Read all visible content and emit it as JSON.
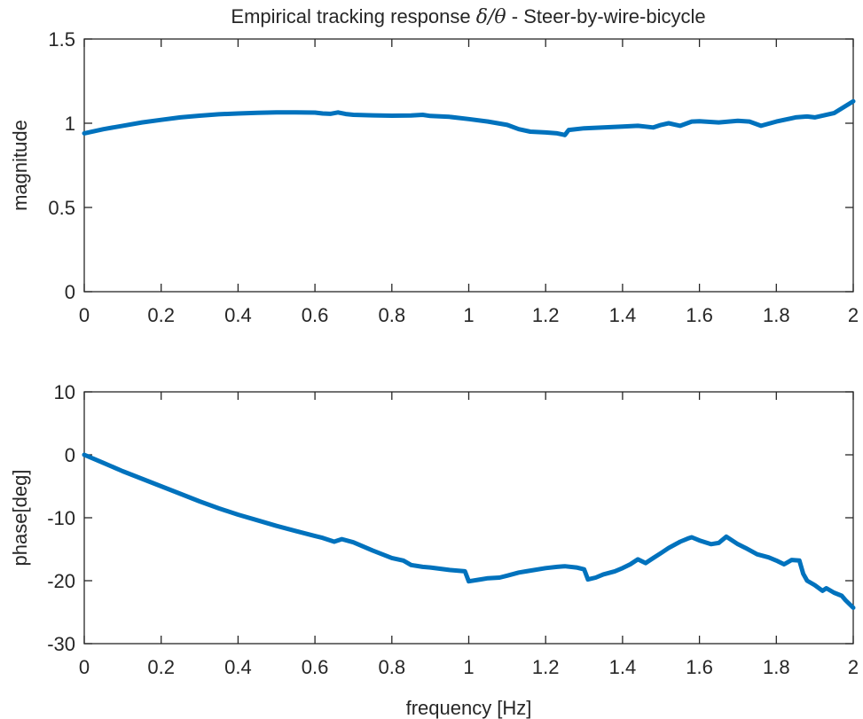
{
  "chart_data": [
    {
      "type": "line",
      "title_prefix": "Empirical tracking response ",
      "title_math": "δ/θ",
      "title_suffix": " - Steer-by-wire-bicycle",
      "xlabel": "",
      "ylabel": "magnitude",
      "xlim": [
        0,
        2
      ],
      "ylim": [
        0,
        1.5
      ],
      "xticks": [
        0,
        0.2,
        0.4,
        0.6,
        0.8,
        1,
        1.2,
        1.4,
        1.6,
        1.8,
        2
      ],
      "xtick_labels": [
        "0",
        "0.2",
        "0.4",
        "0.6",
        "0.8",
        "1",
        "1.2",
        "1.4",
        "1.6",
        "1.8",
        "2"
      ],
      "yticks": [
        0,
        0.5,
        1,
        1.5
      ],
      "ytick_labels": [
        "0",
        "0.5",
        "1",
        "1.5"
      ],
      "grid": false,
      "color": "#0072BD",
      "series": [
        {
          "x": [
            0,
            0.05,
            0.1,
            0.15,
            0.2,
            0.25,
            0.3,
            0.35,
            0.4,
            0.45,
            0.5,
            0.55,
            0.6,
            0.62,
            0.64,
            0.66,
            0.68,
            0.7,
            0.75,
            0.8,
            0.85,
            0.88,
            0.9,
            0.95,
            1.0,
            1.05,
            1.1,
            1.13,
            1.16,
            1.2,
            1.23,
            1.25,
            1.26,
            1.3,
            1.35,
            1.4,
            1.44,
            1.46,
            1.48,
            1.5,
            1.52,
            1.55,
            1.58,
            1.6,
            1.65,
            1.7,
            1.73,
            1.76,
            1.8,
            1.85,
            1.88,
            1.9,
            1.95,
            2.0
          ],
          "y": [
            0.94,
            0.965,
            0.985,
            1.005,
            1.02,
            1.035,
            1.045,
            1.053,
            1.058,
            1.062,
            1.064,
            1.065,
            1.063,
            1.058,
            1.056,
            1.064,
            1.055,
            1.05,
            1.047,
            1.045,
            1.046,
            1.05,
            1.043,
            1.038,
            1.025,
            1.01,
            0.99,
            0.965,
            0.95,
            0.945,
            0.94,
            0.93,
            0.96,
            0.97,
            0.975,
            0.98,
            0.985,
            0.98,
            0.975,
            0.99,
            1.0,
            0.985,
            1.01,
            1.012,
            1.005,
            1.015,
            1.01,
            0.985,
            1.01,
            1.035,
            1.04,
            1.035,
            1.06,
            1.13
          ]
        }
      ]
    },
    {
      "type": "line",
      "title": "",
      "xlabel": "frequency [Hz]",
      "ylabel": "phase[deg]",
      "xlim": [
        0,
        2
      ],
      "ylim": [
        -30,
        10
      ],
      "xticks": [
        0,
        0.2,
        0.4,
        0.6,
        0.8,
        1,
        1.2,
        1.4,
        1.6,
        1.8,
        2
      ],
      "xtick_labels": [
        "0",
        "0.2",
        "0.4",
        "0.6",
        "0.8",
        "1",
        "1.2",
        "1.4",
        "1.6",
        "1.8",
        "2"
      ],
      "yticks": [
        -30,
        -20,
        -10,
        0,
        10
      ],
      "ytick_labels": [
        "-30",
        "-20",
        "-10",
        "0",
        "10"
      ],
      "grid": false,
      "color": "#0072BD",
      "series": [
        {
          "x": [
            0,
            0.05,
            0.1,
            0.15,
            0.2,
            0.25,
            0.3,
            0.35,
            0.4,
            0.45,
            0.5,
            0.55,
            0.6,
            0.62,
            0.65,
            0.67,
            0.7,
            0.75,
            0.8,
            0.83,
            0.85,
            0.88,
            0.9,
            0.95,
            0.99,
            1.0,
            1.03,
            1.05,
            1.08,
            1.1,
            1.13,
            1.15,
            1.2,
            1.23,
            1.25,
            1.28,
            1.3,
            1.31,
            1.33,
            1.35,
            1.38,
            1.4,
            1.42,
            1.44,
            1.46,
            1.48,
            1.5,
            1.52,
            1.55,
            1.57,
            1.58,
            1.6,
            1.63,
            1.65,
            1.67,
            1.7,
            1.72,
            1.75,
            1.78,
            1.8,
            1.82,
            1.84,
            1.86,
            1.87,
            1.88,
            1.9,
            1.92,
            1.93,
            1.95,
            1.97,
            1.98,
            2.0
          ],
          "y": [
            0,
            -1.3,
            -2.6,
            -3.8,
            -5.0,
            -6.2,
            -7.4,
            -8.5,
            -9.5,
            -10.4,
            -11.3,
            -12.1,
            -12.9,
            -13.2,
            -13.8,
            -13.4,
            -13.9,
            -15.2,
            -16.4,
            -16.8,
            -17.5,
            -17.8,
            -17.9,
            -18.3,
            -18.5,
            -20.1,
            -19.8,
            -19.6,
            -19.5,
            -19.2,
            -18.7,
            -18.5,
            -18.0,
            -17.8,
            -17.7,
            -17.9,
            -18.2,
            -19.8,
            -19.5,
            -19.0,
            -18.5,
            -18.0,
            -17.4,
            -16.6,
            -17.2,
            -16.4,
            -15.6,
            -14.8,
            -13.8,
            -13.3,
            -13.1,
            -13.6,
            -14.2,
            -14.0,
            -13.0,
            -14.2,
            -14.8,
            -15.8,
            -16.3,
            -16.8,
            -17.4,
            -16.7,
            -16.8,
            -18.9,
            -20.0,
            -20.7,
            -21.6,
            -21.2,
            -21.9,
            -22.4,
            -23.1,
            -24.3
          ]
        }
      ]
    }
  ]
}
